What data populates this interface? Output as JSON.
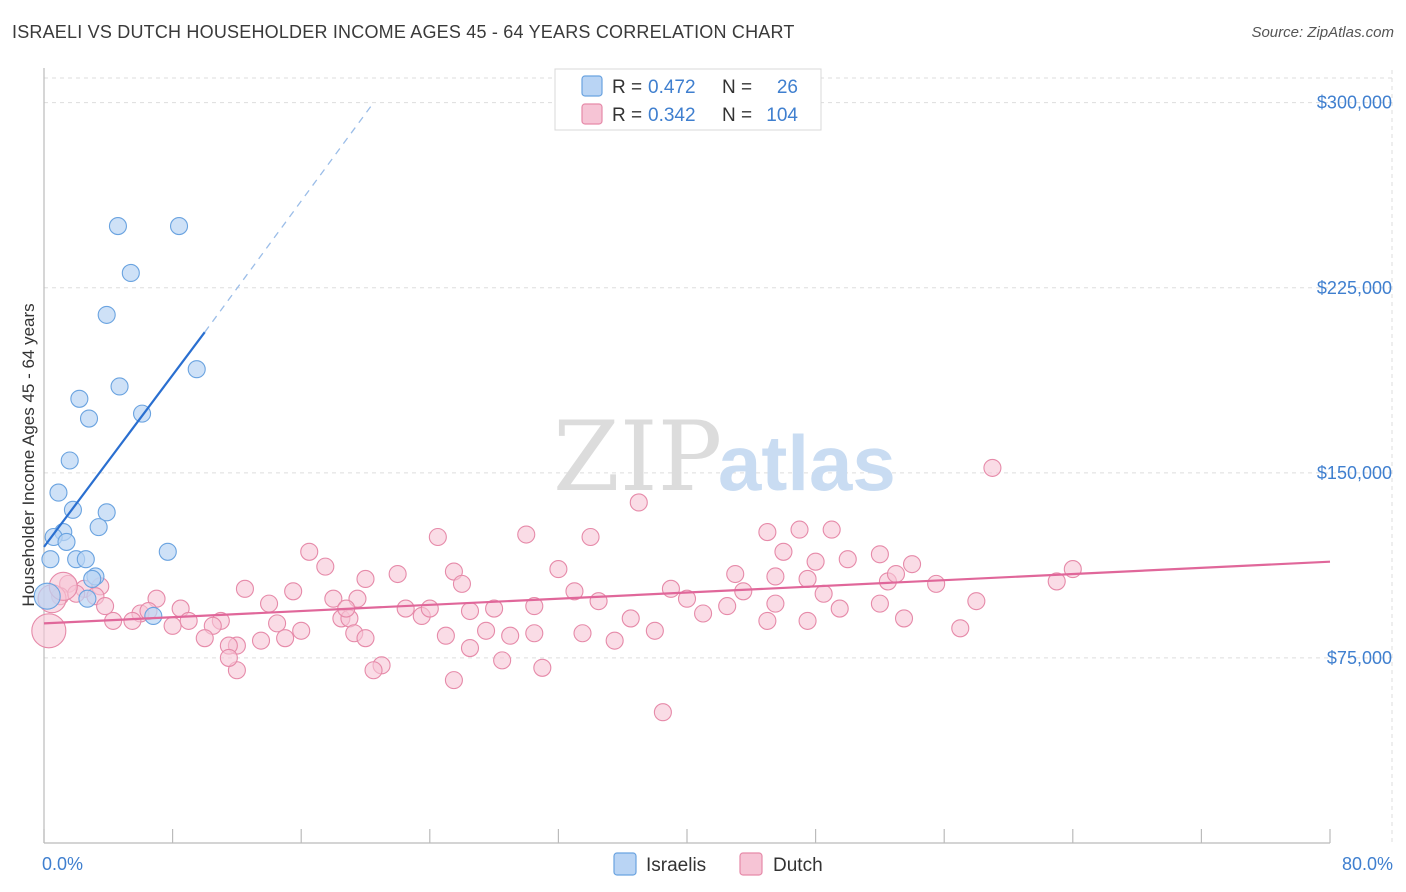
{
  "title": "ISRAELI VS DUTCH HOUSEHOLDER INCOME AGES 45 - 64 YEARS CORRELATION CHART",
  "source": "Source: ZipAtlas.com",
  "watermark": {
    "part1": "ZIP",
    "part2": "atlas"
  },
  "colors": {
    "israelis": "#6aa3e0",
    "israelis_fill": "#b9d4f4",
    "israelis_line": "#2a6fd0",
    "dutch": "#e68aa9",
    "dutch_fill": "#f6c4d5",
    "dutch_line": "#e0679a",
    "axis_text": "#3f7fcf",
    "grid": "#dddddd"
  },
  "legend": {
    "rows": [
      {
        "r_label": "R =",
        "r_value": "0.472",
        "n_label": "N =",
        "n_value": "26"
      },
      {
        "r_label": "R =",
        "r_value": "0.342",
        "n_label": "N =",
        "n_value": "104"
      }
    ]
  },
  "bottom_legend": [
    "Israelis",
    "Dutch"
  ],
  "chart_data": {
    "type": "scatter",
    "title": "ISRAELI VS DUTCH HOUSEHOLDER INCOME AGES 45 - 64 YEARS CORRELATION CHART",
    "xlabel": "",
    "ylabel": "Householder Income Ages 45 - 64 years",
    "xlim": [
      0,
      80
    ],
    "ylim": [
      0,
      310000
    ],
    "x_tick_labels": [
      "0.0%",
      "80.0%"
    ],
    "y_ticks": [
      75000,
      150000,
      225000,
      300000
    ],
    "y_tick_labels": [
      "$75,000",
      "$150,000",
      "$225,000",
      "$300,000"
    ],
    "grid": true,
    "legend_position": "top-center",
    "series": [
      {
        "name": "Israelis",
        "r": 0.472,
        "n": 26,
        "trend": {
          "x0": 0,
          "y0": 120000,
          "x1": 10,
          "y1": 207000,
          "dash_to_x": 20.5,
          "dash_to_y": 300000
        },
        "points": [
          [
            4.6,
            250000
          ],
          [
            8.4,
            250000
          ],
          [
            5.4,
            231000
          ],
          [
            3.9,
            214000
          ],
          [
            9.5,
            192000
          ],
          [
            4.7,
            185000
          ],
          [
            2.2,
            180000
          ],
          [
            6.1,
            174000
          ],
          [
            2.8,
            172000
          ],
          [
            1.6,
            155000
          ],
          [
            0.9,
            142000
          ],
          [
            1.8,
            135000
          ],
          [
            3.9,
            134000
          ],
          [
            3.4,
            128000
          ],
          [
            1.2,
            126000
          ],
          [
            0.6,
            124000
          ],
          [
            1.4,
            122000
          ],
          [
            7.7,
            118000
          ],
          [
            0.4,
            115000
          ],
          [
            2.0,
            115000
          ],
          [
            2.6,
            115000
          ],
          [
            3.2,
            108000
          ],
          [
            3.0,
            107000
          ],
          [
            0.2,
            100000
          ],
          [
            2.7,
            99000
          ],
          [
            6.8,
            92000
          ]
        ]
      },
      {
        "name": "Dutch",
        "r": 0.342,
        "n": 104,
        "trend": {
          "x0": 0,
          "y0": 89000,
          "x1": 80,
          "y1": 114000
        },
        "points": [
          [
            59.0,
            152000
          ],
          [
            37.0,
            138000
          ],
          [
            47.0,
            127000
          ],
          [
            49.0,
            127000
          ],
          [
            45.0,
            126000
          ],
          [
            30.0,
            125000
          ],
          [
            34.0,
            124000
          ],
          [
            24.5,
            124000
          ],
          [
            46.0,
            118000
          ],
          [
            16.5,
            118000
          ],
          [
            52.0,
            117000
          ],
          [
            50.0,
            115000
          ],
          [
            48.0,
            114000
          ],
          [
            54.0,
            113000
          ],
          [
            17.5,
            112000
          ],
          [
            32.0,
            111000
          ],
          [
            64.0,
            111000
          ],
          [
            25.5,
            110000
          ],
          [
            43.0,
            109000
          ],
          [
            22.0,
            109000
          ],
          [
            45.5,
            108000
          ],
          [
            20.0,
            107000
          ],
          [
            47.5,
            107000
          ],
          [
            63.0,
            106000
          ],
          [
            52.5,
            106000
          ],
          [
            55.5,
            105000
          ],
          [
            26.0,
            105000
          ],
          [
            1.5,
            105000
          ],
          [
            3.5,
            104000
          ],
          [
            2.5,
            103000
          ],
          [
            39.0,
            103000
          ],
          [
            12.5,
            103000
          ],
          [
            15.5,
            102000
          ],
          [
            33.0,
            102000
          ],
          [
            43.5,
            102000
          ],
          [
            48.5,
            101000
          ],
          [
            1.0,
            100000
          ],
          [
            3.2,
            100000
          ],
          [
            7.0,
            99000
          ],
          [
            18.0,
            99000
          ],
          [
            40.0,
            99000
          ],
          [
            58.0,
            98000
          ],
          [
            34.5,
            98000
          ],
          [
            45.5,
            97000
          ],
          [
            52.0,
            97000
          ],
          [
            14.0,
            97000
          ],
          [
            30.5,
            96000
          ],
          [
            28.0,
            95000
          ],
          [
            22.5,
            95000
          ],
          [
            49.5,
            95000
          ],
          [
            26.5,
            94000
          ],
          [
            6.0,
            93000
          ],
          [
            23.5,
            92000
          ],
          [
            53.5,
            91000
          ],
          [
            18.5,
            91000
          ],
          [
            47.5,
            90000
          ],
          [
            45.0,
            90000
          ],
          [
            4.3,
            90000
          ],
          [
            11.0,
            90000
          ],
          [
            14.5,
            89000
          ],
          [
            19.0,
            91000
          ],
          [
            10.5,
            88000
          ],
          [
            8.0,
            88000
          ],
          [
            16.0,
            86000
          ],
          [
            38.0,
            86000
          ],
          [
            33.5,
            85000
          ],
          [
            30.5,
            85000
          ],
          [
            25.0,
            84000
          ],
          [
            19.3,
            85000
          ],
          [
            29.0,
            84000
          ],
          [
            15.0,
            83000
          ],
          [
            57.0,
            87000
          ],
          [
            10.0,
            83000
          ],
          [
            13.5,
            82000
          ],
          [
            35.5,
            82000
          ],
          [
            12.0,
            80000
          ],
          [
            26.5,
            79000
          ],
          [
            11.5,
            80000
          ],
          [
            20.0,
            83000
          ],
          [
            5.5,
            90000
          ],
          [
            6.5,
            94000
          ],
          [
            2.0,
            101000
          ],
          [
            8.5,
            95000
          ],
          [
            9.0,
            90000
          ],
          [
            3.8,
            96000
          ],
          [
            28.5,
            74000
          ],
          [
            21.0,
            72000
          ],
          [
            31.0,
            71000
          ],
          [
            20.5,
            70000
          ],
          [
            12.0,
            70000
          ],
          [
            11.5,
            75000
          ],
          [
            25.5,
            66000
          ],
          [
            38.5,
            53000
          ],
          [
            19.5,
            99000
          ],
          [
            41.0,
            93000
          ],
          [
            36.5,
            91000
          ],
          [
            53.0,
            109000
          ],
          [
            27.5,
            86000
          ],
          [
            24.0,
            95000
          ],
          [
            18.8,
            95000
          ],
          [
            0.3,
            86000
          ],
          [
            0.5,
            99000
          ],
          [
            1.2,
            104000
          ],
          [
            42.5,
            96000
          ]
        ]
      }
    ]
  }
}
